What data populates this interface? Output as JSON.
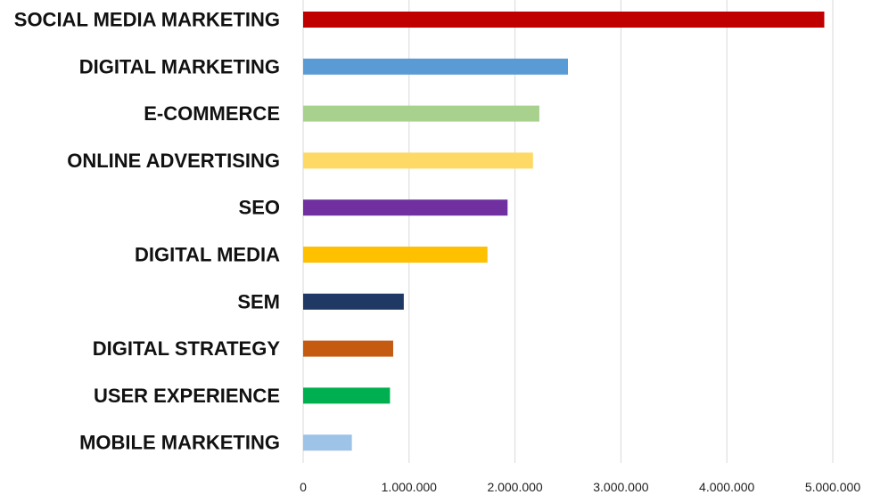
{
  "chart_data": {
    "type": "bar",
    "orientation": "horizontal",
    "title": "",
    "xlabel": "",
    "ylabel": "",
    "categories": [
      "SOCIAL MEDIA MARKETING",
      "DIGITAL MARKETING",
      "E-COMMERCE",
      "ONLINE ADVERTISING",
      "SEO",
      "DIGITAL MEDIA",
      "SEM",
      "DIGITAL STRATEGY",
      "USER EXPERIENCE",
      "MOBILE MARKETING"
    ],
    "values": [
      4920000,
      2500000,
      2230000,
      2170000,
      1930000,
      1740000,
      950000,
      850000,
      820000,
      460000
    ],
    "colors": [
      "#c00000",
      "#5b9bd5",
      "#a9d18e",
      "#ffd966",
      "#7030a0",
      "#ffc000",
      "#1f3864",
      "#c55a11",
      "#00b050",
      "#9dc3e6"
    ],
    "xlim": [
      0,
      5000000
    ],
    "xticks": [
      0,
      1000000,
      2000000,
      3000000,
      4000000,
      5000000
    ],
    "xtick_labels": [
      "0",
      "1.000.000",
      "2.000.000",
      "3.000.000",
      "4.000.000",
      "5.000.000"
    ],
    "grid": "vertical",
    "legend": "none"
  }
}
